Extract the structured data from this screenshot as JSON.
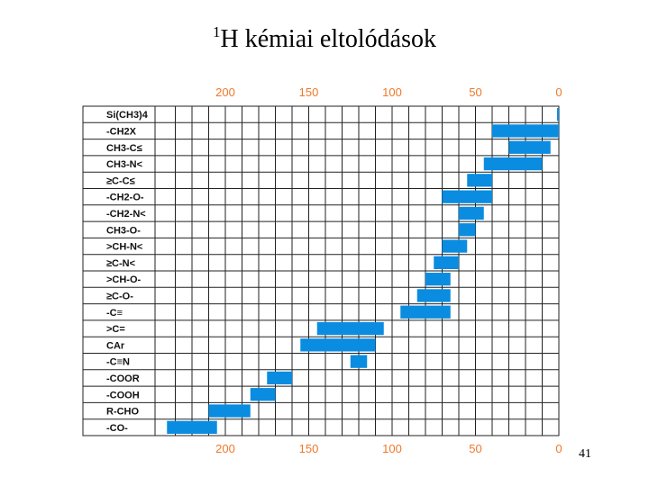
{
  "slide": {
    "title_superscript": "1",
    "title_main": "H kémiai eltolódások",
    "page_number": "41"
  },
  "chart_data": {
    "type": "bar",
    "orientation": "horizontal-range",
    "x_axis_reversed": true,
    "xlim": [
      0,
      220
    ],
    "x_ticks": [
      200,
      150,
      100,
      50,
      0
    ],
    "tick_color": "#f07828",
    "bar_color": "#0a8ce0",
    "grid": true,
    "categories": [
      "Si(CH3)4",
      "-CH2X",
      "CH3-C≤",
      "CH3-N<",
      "≥C-C≤",
      "-CH2-O-",
      "-CH2-N<",
      "CH3-O-",
      ">CH-N<",
      "≥C-N<",
      ">CH-O-",
      "≥C-O-",
      "-C≡",
      ">C=",
      "CAr",
      "-C≡N",
      "-COOR",
      "-COOH",
      "R-CHO",
      "-CO-"
    ],
    "ranges": [
      [
        0,
        0
      ],
      [
        0,
        40
      ],
      [
        5,
        30
      ],
      [
        10,
        45
      ],
      [
        40,
        55
      ],
      [
        40,
        70
      ],
      [
        45,
        60
      ],
      [
        50,
        60
      ],
      [
        55,
        70
      ],
      [
        60,
        75
      ],
      [
        65,
        80
      ],
      [
        65,
        85
      ],
      [
        65,
        95
      ],
      [
        105,
        145
      ],
      [
        110,
        155
      ],
      [
        115,
        125
      ],
      [
        160,
        175
      ],
      [
        170,
        185
      ],
      [
        185,
        210
      ],
      [
        205,
        235
      ]
    ]
  }
}
